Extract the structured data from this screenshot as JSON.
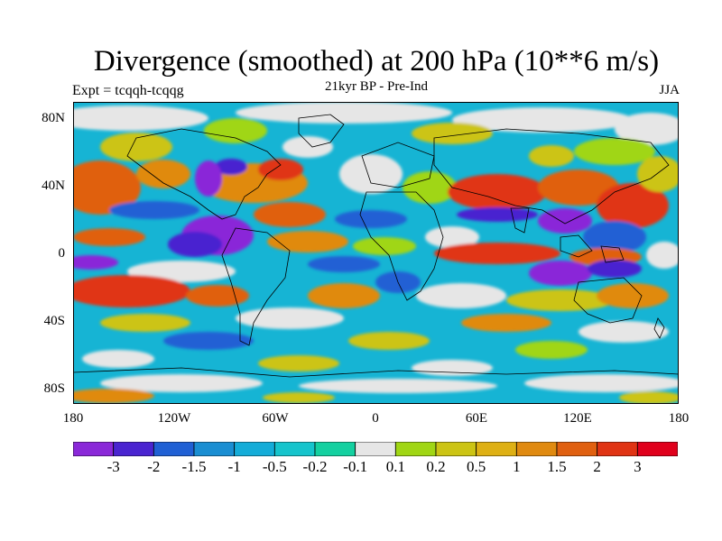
{
  "title": "Divergence (smoothed) at 200 hPa (10**6 m/s)",
  "left_label": "Expt = tcqqh-tcqqg",
  "center_label": "21kyr BP - Pre-Ind",
  "right_label": "JJA",
  "latitude_ticks": [
    "80N",
    "40N",
    "0",
    "40S",
    "80S"
  ],
  "longitude_ticks": [
    "180",
    "120W",
    "60W",
    "0",
    "60E",
    "120E",
    "180"
  ],
  "colorbar": {
    "labels": [
      "-3",
      "-2",
      "-1.5",
      "-1",
      "-0.5",
      "-0.2",
      "-0.1",
      "0.1",
      "0.2",
      "0.5",
      "1",
      "1.5",
      "2",
      "3"
    ],
    "colors": [
      "#8a28d8",
      "#4a24d0",
      "#2060d4",
      "#1a8ed2",
      "#14acd8",
      "#16c4cc",
      "#14d0a0",
      "#e6e6e6",
      "#a0d614",
      "#ccc414",
      "#deb014",
      "#e08a10",
      "#e06010",
      "#e03414",
      "#e0001c"
    ]
  },
  "map_colors": {
    "ocean_dominant": "#16b4d4",
    "neutral": "#e6e6e6",
    "positive": "#e03414",
    "negative": "#5a24d4"
  }
}
